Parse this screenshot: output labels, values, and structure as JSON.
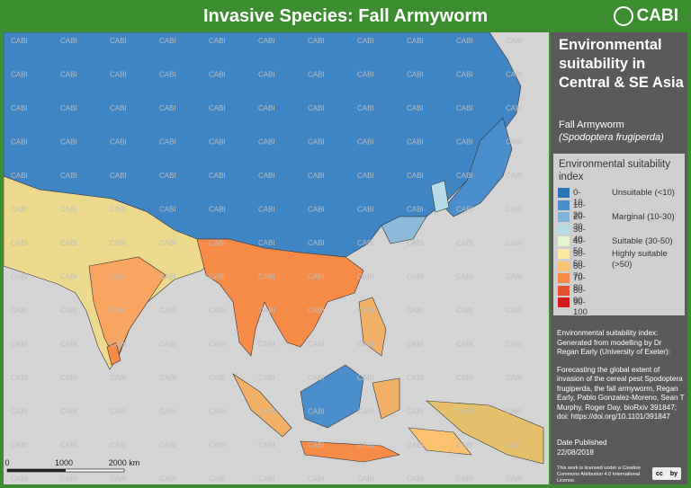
{
  "header": {
    "title": "Invasive Species: Fall Armyworm",
    "logo": "CABI"
  },
  "map": {
    "watermark": "CABI",
    "scale_labels": [
      "0",
      "1000",
      "2000 km"
    ]
  },
  "panel": {
    "title": "Environmental suitability in Central & SE Asia",
    "species_common": "Fall Armyworm",
    "species_scientific": "(Spodoptera frugiperda)"
  },
  "legend": {
    "title": "Environmental suitability index",
    "items": [
      {
        "range": "0-10",
        "color": "#2b74b6"
      },
      {
        "range": "10-20",
        "color": "#4a8fcb"
      },
      {
        "range": "20-30",
        "color": "#7db4da"
      },
      {
        "range": "30-40",
        "color": "#b5dbe6"
      },
      {
        "range": "40-50",
        "color": "#e6f3cf"
      },
      {
        "range": "50-60",
        "color": "#fde9a3"
      },
      {
        "range": "60-70",
        "color": "#fcc271"
      },
      {
        "range": "70-80",
        "color": "#f58b47"
      },
      {
        "range": "80-90",
        "color": "#e5502d"
      },
      {
        "range": "90-100",
        "color": "#d31b1c"
      }
    ],
    "classes": [
      {
        "label": "Unsuitable (<10)",
        "row": 0
      },
      {
        "label": "Marginal (10-30)",
        "row": 2
      },
      {
        "label": "Suitable (30-50)",
        "row": 4
      },
      {
        "label": "Highly suitable (>50)",
        "row": 5
      }
    ]
  },
  "note": {
    "intro": "Environmental suitability index: Generated from modelling by Dr Regan Early (University of Exeter):",
    "citation": "Forecasting the global extent of invasion of the cereal pest Spodoptera frugiperda, the fall armyworm, Regan Early, Pablo Gonzalez-Moreno, Sean T Murphy, Roger Day, bioRxiv 391847; doi: https://doi.org/10.1101/391847"
  },
  "date": {
    "label": "Date Published",
    "value": "22/08/2018"
  },
  "license": {
    "text": "This work is licensed under a Creative Commons Attribution 4.0 International License.",
    "cc": "cc",
    "by": "by"
  }
}
